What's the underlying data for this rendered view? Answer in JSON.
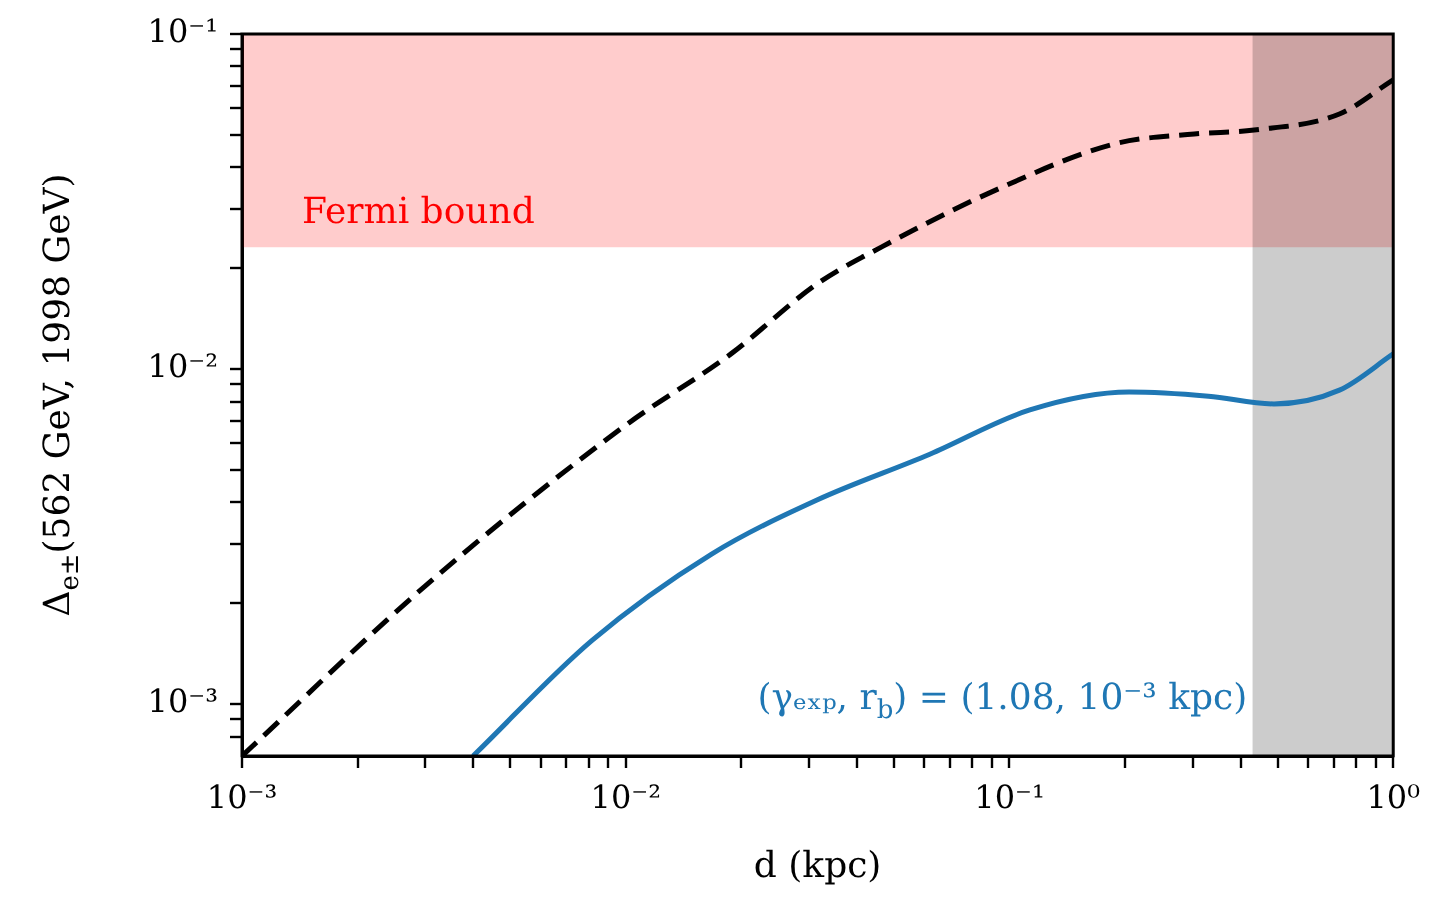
{
  "chart_data": {
    "type": "line",
    "xlabel": "d (kpc)",
    "ylabel": "Δ$_{e±}$(562 GeV, 1998 GeV)",
    "log": "xy",
    "grid": false,
    "legend": false,
    "marker": "none",
    "xlim": [
      0.001,
      1
    ],
    "ylim": [
      0.0007,
      0.1
    ],
    "xticks": [
      {
        "value": 0.001,
        "label": "10⁻³"
      },
      {
        "value": 0.002,
        "label": null
      },
      {
        "value": 0.003,
        "label": null
      },
      {
        "value": 0.004,
        "label": null
      },
      {
        "value": 0.005,
        "label": null
      },
      {
        "value": 0.006,
        "label": null
      },
      {
        "value": 0.007,
        "label": null
      },
      {
        "value": 0.008,
        "label": null
      },
      {
        "value": 0.009,
        "label": null
      },
      {
        "value": 0.01,
        "label": "10⁻²"
      },
      {
        "value": 0.02,
        "label": null
      },
      {
        "value": 0.03,
        "label": null
      },
      {
        "value": 0.04,
        "label": null
      },
      {
        "value": 0.05,
        "label": null
      },
      {
        "value": 0.06,
        "label": null
      },
      {
        "value": 0.07,
        "label": null
      },
      {
        "value": 0.08,
        "label": null
      },
      {
        "value": 0.09,
        "label": null
      },
      {
        "value": 0.1,
        "label": "10⁻¹"
      },
      {
        "value": 0.2,
        "label": null
      },
      {
        "value": 0.3,
        "label": null
      },
      {
        "value": 0.4,
        "label": null
      },
      {
        "value": 0.5,
        "label": null
      },
      {
        "value": 0.6,
        "label": null
      },
      {
        "value": 0.7,
        "label": null
      },
      {
        "value": 0.8,
        "label": null
      },
      {
        "value": 0.9,
        "label": null
      },
      {
        "value": 1,
        "label": "10⁰"
      }
    ],
    "yticks": [
      {
        "value": 0.0008,
        "label": null
      },
      {
        "value": 0.0009,
        "label": null
      },
      {
        "value": 0.001,
        "label": "10⁻³"
      },
      {
        "value": 0.002,
        "label": null
      },
      {
        "value": 0.003,
        "label": null
      },
      {
        "value": 0.004,
        "label": null
      },
      {
        "value": 0.005,
        "label": null
      },
      {
        "value": 0.006,
        "label": null
      },
      {
        "value": 0.007,
        "label": null
      },
      {
        "value": 0.008,
        "label": null
      },
      {
        "value": 0.009,
        "label": null
      },
      {
        "value": 0.01,
        "label": "10⁻²"
      },
      {
        "value": 0.02,
        "label": null
      },
      {
        "value": 0.03,
        "label": null
      },
      {
        "value": 0.04,
        "label": null
      },
      {
        "value": 0.05,
        "label": null
      },
      {
        "value": 0.06,
        "label": null
      },
      {
        "value": 0.07,
        "label": null
      },
      {
        "value": 0.08,
        "label": null
      },
      {
        "value": 0.09,
        "label": null
      },
      {
        "value": 0.1,
        "label": "10⁻¹"
      }
    ],
    "bands": [
      {
        "axis": "y",
        "from": 0.0231,
        "to": 0.1,
        "label": "Fermi bound",
        "color": "#ffcccc"
      },
      {
        "axis": "x",
        "from": 0.43,
        "to": 1,
        "color": "#cccccc"
      }
    ],
    "series": [
      {
        "color": "#000000",
        "line_style": "dashed",
        "x": [
          0.001,
          0.003,
          0.01,
          0.0188,
          0.0314,
          0.0466,
          0.092,
          0.188,
          0.303,
          0.434,
          0.724,
          1
        ],
        "values": [
          0.0007,
          0.00225,
          0.0068,
          0.0111,
          0.0179,
          0.0232,
          0.0342,
          0.047,
          0.0503,
          0.0517,
          0.0577,
          0.073
        ]
      },
      {
        "name": "(γₑₓₚ, r$_{b}$) = (1.08, 10⁻³ kpc)",
        "color": "#1f77b4",
        "line_style": "solid",
        "x": [
          0.004,
          0.00817,
          0.0167,
          0.0314,
          0.062,
          0.113,
          0.205,
          0.33,
          0.489,
          0.724,
          1
        ],
        "values": [
          0.0007,
          0.00155,
          0.0028,
          0.00406,
          0.00557,
          0.00755,
          0.00854,
          0.0083,
          0.00787,
          0.00865,
          0.0111
        ]
      }
    ]
  }
}
